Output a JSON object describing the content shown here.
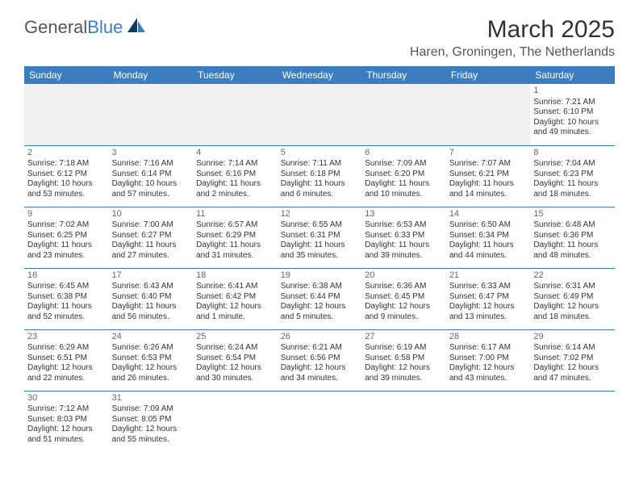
{
  "logo": {
    "general": "General",
    "blue": "Blue"
  },
  "title": "March 2025",
  "location": "Haren, Groningen, The Netherlands",
  "colors": {
    "header_bg": "#3b7dbf",
    "header_text": "#ffffff",
    "border": "#3b7dbf",
    "blank_bg": "#f0f0f0",
    "text": "#333333",
    "daynum": "#666666",
    "logo_blue": "#3b7dbf",
    "logo_gray": "#555555"
  },
  "typography": {
    "title_fontsize": 30,
    "location_fontsize": 16,
    "dayheader_fontsize": 12,
    "cell_fontsize": 10,
    "logo_fontsize": 22
  },
  "day_headers": [
    "Sunday",
    "Monday",
    "Tuesday",
    "Wednesday",
    "Thursday",
    "Friday",
    "Saturday"
  ],
  "weeks": [
    [
      null,
      null,
      null,
      null,
      null,
      null,
      {
        "n": "1",
        "sunrise": "Sunrise: 7:21 AM",
        "sunset": "Sunset: 6:10 PM",
        "daylight": "Daylight: 10 hours and 49 minutes."
      }
    ],
    [
      {
        "n": "2",
        "sunrise": "Sunrise: 7:18 AM",
        "sunset": "Sunset: 6:12 PM",
        "daylight": "Daylight: 10 hours and 53 minutes."
      },
      {
        "n": "3",
        "sunrise": "Sunrise: 7:16 AM",
        "sunset": "Sunset: 6:14 PM",
        "daylight": "Daylight: 10 hours and 57 minutes."
      },
      {
        "n": "4",
        "sunrise": "Sunrise: 7:14 AM",
        "sunset": "Sunset: 6:16 PM",
        "daylight": "Daylight: 11 hours and 2 minutes."
      },
      {
        "n": "5",
        "sunrise": "Sunrise: 7:11 AM",
        "sunset": "Sunset: 6:18 PM",
        "daylight": "Daylight: 11 hours and 6 minutes."
      },
      {
        "n": "6",
        "sunrise": "Sunrise: 7:09 AM",
        "sunset": "Sunset: 6:20 PM",
        "daylight": "Daylight: 11 hours and 10 minutes."
      },
      {
        "n": "7",
        "sunrise": "Sunrise: 7:07 AM",
        "sunset": "Sunset: 6:21 PM",
        "daylight": "Daylight: 11 hours and 14 minutes."
      },
      {
        "n": "8",
        "sunrise": "Sunrise: 7:04 AM",
        "sunset": "Sunset: 6:23 PM",
        "daylight": "Daylight: 11 hours and 18 minutes."
      }
    ],
    [
      {
        "n": "9",
        "sunrise": "Sunrise: 7:02 AM",
        "sunset": "Sunset: 6:25 PM",
        "daylight": "Daylight: 11 hours and 23 minutes."
      },
      {
        "n": "10",
        "sunrise": "Sunrise: 7:00 AM",
        "sunset": "Sunset: 6:27 PM",
        "daylight": "Daylight: 11 hours and 27 minutes."
      },
      {
        "n": "11",
        "sunrise": "Sunrise: 6:57 AM",
        "sunset": "Sunset: 6:29 PM",
        "daylight": "Daylight: 11 hours and 31 minutes."
      },
      {
        "n": "12",
        "sunrise": "Sunrise: 6:55 AM",
        "sunset": "Sunset: 6:31 PM",
        "daylight": "Daylight: 11 hours and 35 minutes."
      },
      {
        "n": "13",
        "sunrise": "Sunrise: 6:53 AM",
        "sunset": "Sunset: 6:33 PM",
        "daylight": "Daylight: 11 hours and 39 minutes."
      },
      {
        "n": "14",
        "sunrise": "Sunrise: 6:50 AM",
        "sunset": "Sunset: 6:34 PM",
        "daylight": "Daylight: 11 hours and 44 minutes."
      },
      {
        "n": "15",
        "sunrise": "Sunrise: 6:48 AM",
        "sunset": "Sunset: 6:36 PM",
        "daylight": "Daylight: 11 hours and 48 minutes."
      }
    ],
    [
      {
        "n": "16",
        "sunrise": "Sunrise: 6:45 AM",
        "sunset": "Sunset: 6:38 PM",
        "daylight": "Daylight: 11 hours and 52 minutes."
      },
      {
        "n": "17",
        "sunrise": "Sunrise: 6:43 AM",
        "sunset": "Sunset: 6:40 PM",
        "daylight": "Daylight: 11 hours and 56 minutes."
      },
      {
        "n": "18",
        "sunrise": "Sunrise: 6:41 AM",
        "sunset": "Sunset: 6:42 PM",
        "daylight": "Daylight: 12 hours and 1 minute."
      },
      {
        "n": "19",
        "sunrise": "Sunrise: 6:38 AM",
        "sunset": "Sunset: 6:44 PM",
        "daylight": "Daylight: 12 hours and 5 minutes."
      },
      {
        "n": "20",
        "sunrise": "Sunrise: 6:36 AM",
        "sunset": "Sunset: 6:45 PM",
        "daylight": "Daylight: 12 hours and 9 minutes."
      },
      {
        "n": "21",
        "sunrise": "Sunrise: 6:33 AM",
        "sunset": "Sunset: 6:47 PM",
        "daylight": "Daylight: 12 hours and 13 minutes."
      },
      {
        "n": "22",
        "sunrise": "Sunrise: 6:31 AM",
        "sunset": "Sunset: 6:49 PM",
        "daylight": "Daylight: 12 hours and 18 minutes."
      }
    ],
    [
      {
        "n": "23",
        "sunrise": "Sunrise: 6:29 AM",
        "sunset": "Sunset: 6:51 PM",
        "daylight": "Daylight: 12 hours and 22 minutes."
      },
      {
        "n": "24",
        "sunrise": "Sunrise: 6:26 AM",
        "sunset": "Sunset: 6:53 PM",
        "daylight": "Daylight: 12 hours and 26 minutes."
      },
      {
        "n": "25",
        "sunrise": "Sunrise: 6:24 AM",
        "sunset": "Sunset: 6:54 PM",
        "daylight": "Daylight: 12 hours and 30 minutes."
      },
      {
        "n": "26",
        "sunrise": "Sunrise: 6:21 AM",
        "sunset": "Sunset: 6:56 PM",
        "daylight": "Daylight: 12 hours and 34 minutes."
      },
      {
        "n": "27",
        "sunrise": "Sunrise: 6:19 AM",
        "sunset": "Sunset: 6:58 PM",
        "daylight": "Daylight: 12 hours and 39 minutes."
      },
      {
        "n": "28",
        "sunrise": "Sunrise: 6:17 AM",
        "sunset": "Sunset: 7:00 PM",
        "daylight": "Daylight: 12 hours and 43 minutes."
      },
      {
        "n": "29",
        "sunrise": "Sunrise: 6:14 AM",
        "sunset": "Sunset: 7:02 PM",
        "daylight": "Daylight: 12 hours and 47 minutes."
      }
    ],
    [
      {
        "n": "30",
        "sunrise": "Sunrise: 7:12 AM",
        "sunset": "Sunset: 8:03 PM",
        "daylight": "Daylight: 12 hours and 51 minutes."
      },
      {
        "n": "31",
        "sunrise": "Sunrise: 7:09 AM",
        "sunset": "Sunset: 8:05 PM",
        "daylight": "Daylight: 12 hours and 55 minutes."
      },
      null,
      null,
      null,
      null,
      null
    ]
  ]
}
